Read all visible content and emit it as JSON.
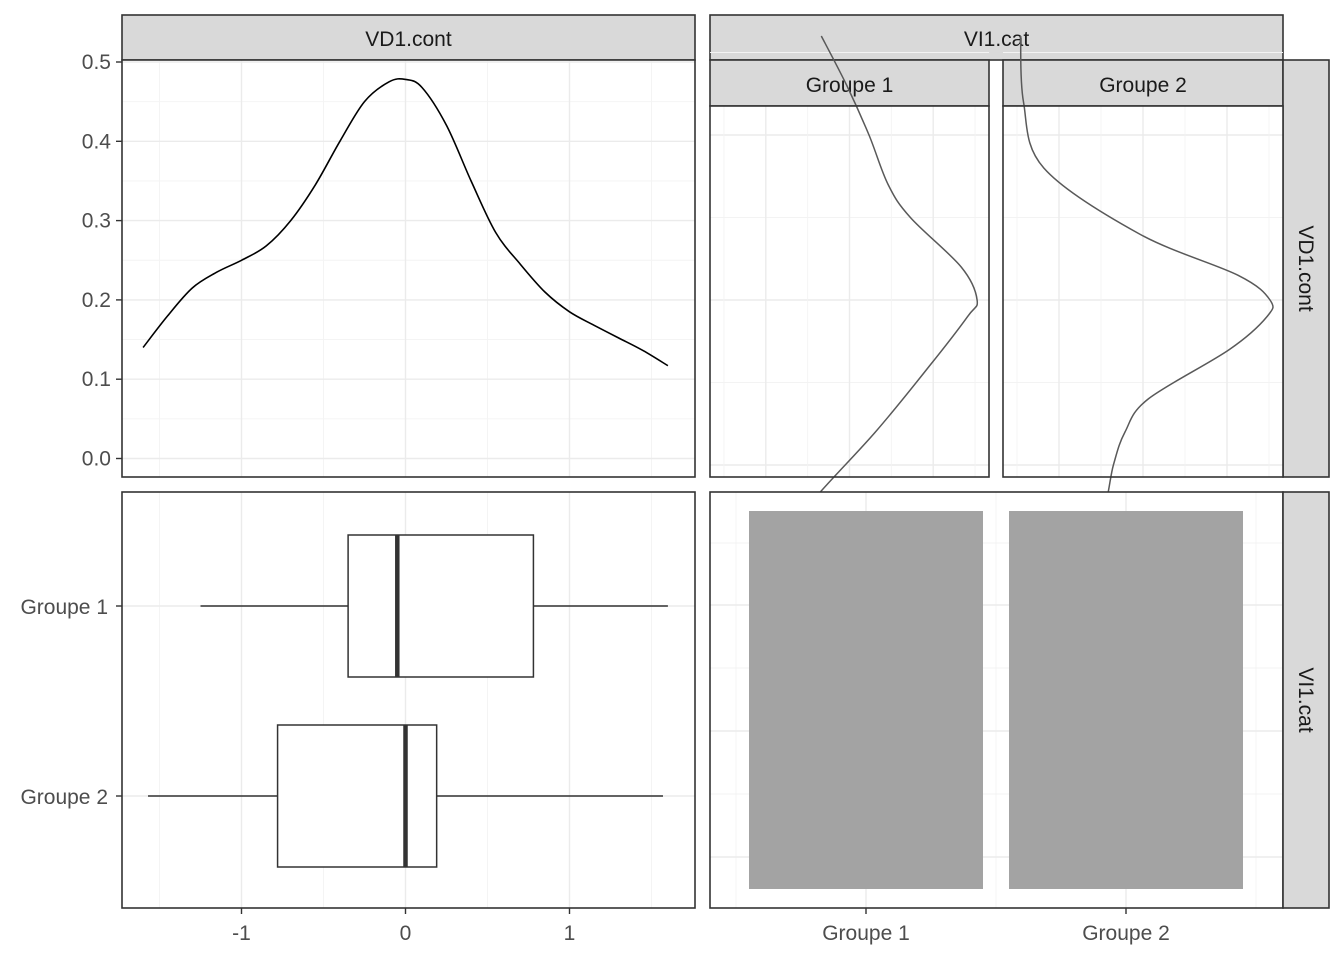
{
  "chart_data": [
    {
      "type": "line",
      "panel": "VD1.cont / VD1.cont (density)",
      "strip_top": "VD1.cont",
      "x": [
        -1.6,
        -1.45,
        -1.3,
        -1.15,
        -1.0,
        -0.85,
        -0.7,
        -0.55,
        -0.4,
        -0.25,
        -0.1,
        0.0,
        0.1,
        0.25,
        0.4,
        0.55,
        0.7,
        0.85,
        1.0,
        1.15,
        1.3,
        1.45,
        1.6
      ],
      "y": [
        0.14,
        0.18,
        0.215,
        0.235,
        0.25,
        0.268,
        0.3,
        0.345,
        0.4,
        0.45,
        0.475,
        0.478,
        0.468,
        0.42,
        0.35,
        0.285,
        0.245,
        0.21,
        0.185,
        0.168,
        0.152,
        0.136,
        0.117
      ],
      "xlim": [
        -1.75,
        1.75
      ],
      "ylim": [
        -0.022,
        0.522
      ],
      "yticks": [
        "0.0",
        "0.1",
        "0.2",
        "0.3",
        "0.4",
        "0.5"
      ]
    },
    {
      "type": "line",
      "panel": "VI1.cat / VD1.cont (density by group, rotated)",
      "strip_top": "VI1.cat",
      "strip_right": "VD1.cont",
      "facets": [
        {
          "strip": "Groupe 1",
          "x": [
            -1.6,
            -1.2,
            -0.8,
            -0.4,
            -0.1,
            0.0,
            0.2,
            0.5,
            0.7,
            1.0,
            1.3,
            1.6
          ],
          "density": [
            0.05,
            0.22,
            0.41,
            0.58,
            0.7,
            0.73,
            0.68,
            0.52,
            0.45,
            0.39,
            0.32,
            0.24
          ]
        },
        {
          "strip": "Groupe 2",
          "x": [
            -1.6,
            -1.3,
            -1.0,
            -0.8,
            -0.6,
            -0.3,
            -0.1,
            0.0,
            0.15,
            0.4,
            0.8,
            1.2,
            1.6
          ],
          "density": [
            0.21,
            0.32,
            0.36,
            0.4,
            0.48,
            0.76,
            0.89,
            0.9,
            0.79,
            0.45,
            0.12,
            0.05,
            0.04
          ]
        }
      ]
    },
    {
      "type": "box",
      "panel": "VD1.cont / VI1.cat (boxplot)",
      "categories": [
        "Groupe 1",
        "Groupe 2"
      ],
      "boxes": [
        {
          "category": "Groupe 1",
          "whisker_low": -1.25,
          "q1": -0.35,
          "median": -0.05,
          "q3": 0.78,
          "whisker_high": 1.6
        },
        {
          "category": "Groupe 2",
          "whisker_low": -1.57,
          "q1": -0.78,
          "median": 0.0,
          "q3": 0.19,
          "whisker_high": 1.57
        }
      ],
      "xticks": [
        "-1",
        "0",
        "1"
      ]
    },
    {
      "type": "bar",
      "panel": "VI1.cat / VI1.cat (counts)",
      "strip_right": "VI1.cat",
      "categories": [
        "Groupe 1",
        "Groupe 2"
      ],
      "values": [
        1,
        1
      ],
      "color": "#a3a3a3"
    }
  ]
}
